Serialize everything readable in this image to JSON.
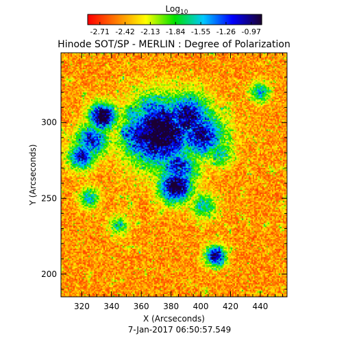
{
  "chart_data": {
    "type": "heatmap",
    "title": "Hinode SOT/SP - MERLIN : Degree of Polarization",
    "xlabel": "X (Arcseconds)",
    "ylabel": "Y (Arcseconds)",
    "footer": "7-Jan-2017 06:50:57.549",
    "xlim": [
      306,
      458
    ],
    "ylim": [
      185,
      346
    ],
    "xticks": [
      320,
      340,
      360,
      380,
      400,
      420,
      440
    ],
    "yticks": [
      200,
      250,
      300
    ],
    "colorbar": {
      "label": "Log",
      "label_sub": "10",
      "min": -2.85,
      "max": -0.85,
      "ticks": [
        -2.71,
        -2.42,
        -2.13,
        -1.84,
        -1.55,
        -1.26,
        -0.97
      ],
      "tick_labels": [
        "-2.71",
        "-2.42",
        "-2.13",
        "-1.84",
        "-1.55",
        "-1.26",
        "-0.97"
      ],
      "colormap": [
        "#ff0000",
        "#ff8000",
        "#ffff00",
        "#00e000",
        "#00c8ff",
        "#0000ff",
        "#1a0033"
      ]
    },
    "features": [
      {
        "x": 373,
        "y": 293,
        "r": 10,
        "level": 1.0
      },
      {
        "x": 362,
        "y": 291,
        "r": 7,
        "level": 0.85
      },
      {
        "x": 380,
        "y": 299,
        "r": 8,
        "level": 0.7
      },
      {
        "x": 391,
        "y": 303,
        "r": 7,
        "level": 0.85
      },
      {
        "x": 400,
        "y": 292,
        "r": 7,
        "level": 0.8
      },
      {
        "x": 385,
        "y": 270,
        "r": 6,
        "level": 0.7
      },
      {
        "x": 383,
        "y": 258,
        "r": 5,
        "level": 0.95
      },
      {
        "x": 334,
        "y": 304,
        "r": 4,
        "level": 1.0
      },
      {
        "x": 327,
        "y": 288,
        "r": 5,
        "level": 0.7
      },
      {
        "x": 320,
        "y": 278,
        "r": 4,
        "level": 0.75
      },
      {
        "x": 367,
        "y": 309,
        "r": 5,
        "level": 0.6
      },
      {
        "x": 410,
        "y": 212,
        "r": 3,
        "level": 0.85
      },
      {
        "x": 440,
        "y": 320,
        "r": 3,
        "level": 0.5
      },
      {
        "x": 413,
        "y": 280,
        "r": 4,
        "level": 0.45
      },
      {
        "x": 355,
        "y": 305,
        "r": 4,
        "level": 0.5
      },
      {
        "x": 345,
        "y": 232,
        "r": 3,
        "level": 0.4
      },
      {
        "x": 402,
        "y": 245,
        "r": 4,
        "level": 0.45
      },
      {
        "x": 325,
        "y": 250,
        "r": 3,
        "level": 0.5
      }
    ]
  }
}
